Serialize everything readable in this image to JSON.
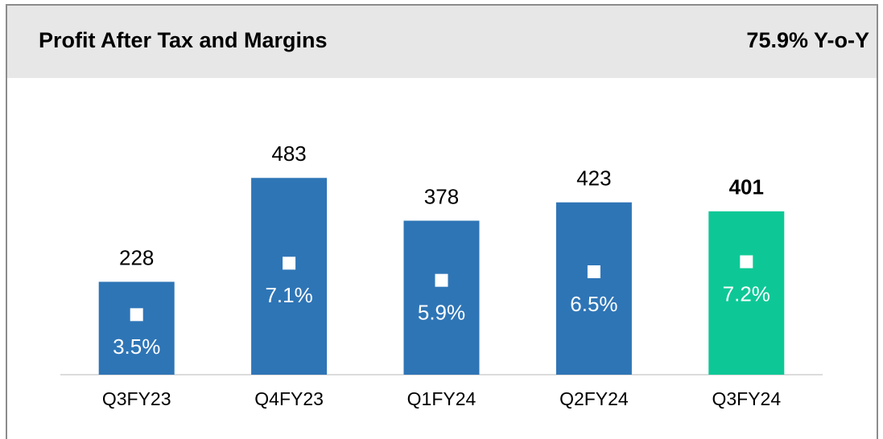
{
  "chart_data": {
    "type": "bar",
    "title": "Profit After Tax and Margins",
    "subtitle": "75.9% Y-o-Y",
    "categories": [
      "Q3FY23",
      "Q4FY23",
      "Q1FY24",
      "Q2FY24",
      "Q3FY24"
    ],
    "series": [
      {
        "name": "Profit After Tax",
        "colors": [
          "#2e75b6",
          "#2e75b6",
          "#2e75b6",
          "#2e75b6",
          "#0dc896"
        ],
        "values": [
          228,
          483,
          378,
          423,
          401
        ]
      },
      {
        "name": "Margin",
        "axis": "y2",
        "color": "#ffffff",
        "values": [
          3.5,
          7.1,
          5.9,
          6.5,
          7.2
        ],
        "value_labels": [
          "3.5%",
          "7.1%",
          "5.9%",
          "6.5%",
          "7.2%"
        ]
      }
    ],
    "highlight_index": 4,
    "ylim": [
      0,
      600
    ],
    "y2lim": [
      -0.7,
      16.4
    ]
  }
}
